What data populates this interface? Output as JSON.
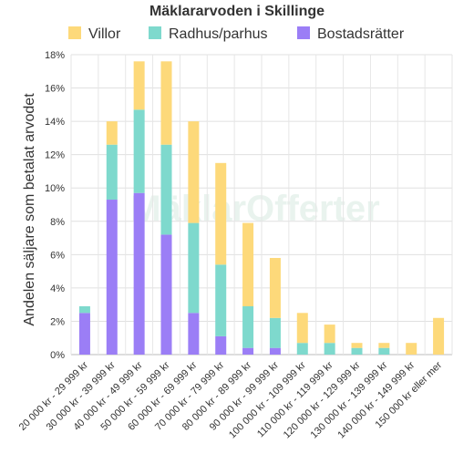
{
  "chart_data": {
    "type": "bar",
    "stacked": true,
    "title": "Mäklararvoden i Skillinge",
    "ylabel": "Andelen säljare som betalat arvodet",
    "xlabel": "",
    "ylim": [
      0,
      18
    ],
    "yticks": [
      0,
      2,
      4,
      6,
      8,
      10,
      12,
      14,
      16,
      18
    ],
    "ytick_suffix": "%",
    "grid": true,
    "legend_position": "top",
    "watermark": "MäklarOfferter",
    "categories": [
      "20 000 kr - 29 999 kr",
      "30 000 kr - 39 999 kr",
      "40 000 kr - 49 999 kr",
      "50 000 kr - 59 999 kr",
      "60 000 kr - 69 999 kr",
      "70 000 kr - 79 999 kr",
      "80 000 kr - 89 999 kr",
      "90 000 kr - 99 999 kr",
      "100 000 kr - 109 999 kr",
      "110 000 kr - 119 999 kr",
      "120 000 kr - 129 999 kr",
      "130 000 kr - 139 999 kr",
      "140 000 kr - 149 999 kr",
      "150 000 kr eller mer"
    ],
    "series": [
      {
        "name": "Bostadsrätter",
        "color": "#9b7ef6",
        "values": [
          2.5,
          9.3,
          9.7,
          7.2,
          2.5,
          1.1,
          0.4,
          0.4,
          0,
          0,
          0,
          0,
          0,
          0
        ]
      },
      {
        "name": "Radhus/parhus",
        "color": "#7ed9cd",
        "values": [
          0.4,
          3.3,
          5.0,
          5.4,
          5.4,
          4.3,
          2.5,
          1.8,
          0.7,
          0.7,
          0.4,
          0.4,
          0,
          0
        ]
      },
      {
        "name": "Villor",
        "color": "#fdd97a",
        "values": [
          0,
          1.4,
          2.9,
          5.0,
          6.1,
          6.1,
          5.0,
          3.6,
          1.8,
          1.1,
          0.3,
          0.3,
          0.7,
          2.2
        ]
      }
    ],
    "legend_order": [
      "Villor",
      "Radhus/parhus",
      "Bostadsrätter"
    ]
  }
}
